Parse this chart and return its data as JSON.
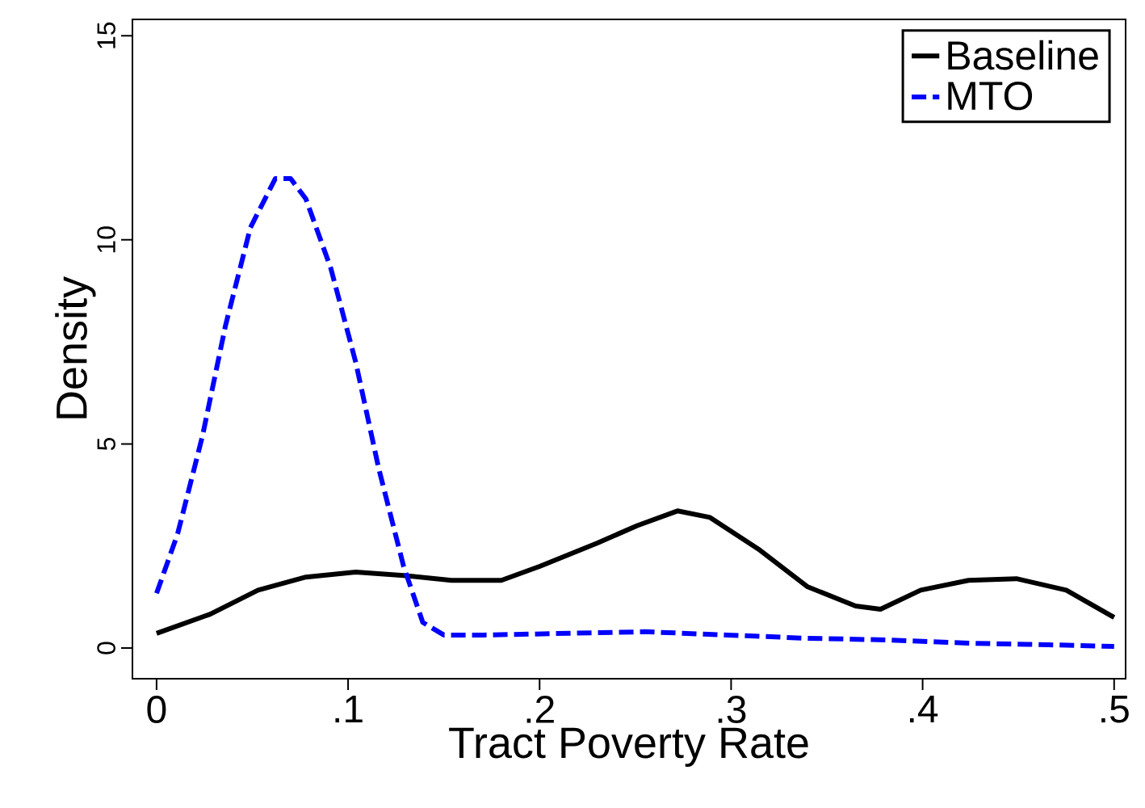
{
  "chart_data": {
    "type": "line",
    "xlabel": "Tract Poverty Rate",
    "ylabel": "Density",
    "xlim": [
      -0.0126,
      0.506
    ],
    "ylim": [
      -0.75,
      15.4
    ],
    "xticks": [
      0,
      {
        "value": 0.1,
        "label": ".1"
      },
      {
        "value": 0.2,
        "label": ".2"
      },
      {
        "value": 0.3,
        "label": ".3"
      },
      {
        "value": 0.4,
        "label": ".4"
      },
      {
        "value": 0.5,
        "label": ".5"
      }
    ],
    "yticks": [
      0,
      5,
      10,
      15
    ],
    "grid": false,
    "legend": "top right",
    "marker": "none",
    "series": [
      {
        "name": "Baseline",
        "color": "#000000",
        "line_style": "solid",
        "x": [
          0,
          0.028,
          0.053,
          0.078,
          0.104,
          0.129,
          0.154,
          0.18,
          0.2,
          0.23,
          0.251,
          0.272,
          0.289,
          0.315,
          0.34,
          0.365,
          0.378,
          0.399,
          0.424,
          0.449,
          0.475,
          0.5
        ],
        "values": [
          0.36,
          0.83,
          1.42,
          1.74,
          1.86,
          1.78,
          1.66,
          1.66,
          2.0,
          2.57,
          3.0,
          3.36,
          3.2,
          2.4,
          1.5,
          1.03,
          0.95,
          1.42,
          1.66,
          1.7,
          1.42,
          0.75
        ]
      },
      {
        "name": "MTO",
        "color": "#0000ff",
        "line_style": "dashed",
        "x": [
          0,
          0.011,
          0.024,
          0.036,
          0.049,
          0.062,
          0.07,
          0.078,
          0.091,
          0.104,
          0.116,
          0.129,
          0.139,
          0.15,
          0.171,
          0.213,
          0.255,
          0.298,
          0.34,
          0.382,
          0.424,
          0.466,
          0.5
        ],
        "values": [
          1.34,
          2.8,
          5.2,
          7.9,
          10.3,
          11.5,
          11.5,
          11.0,
          9.3,
          7.0,
          4.4,
          2.0,
          0.63,
          0.32,
          0.32,
          0.36,
          0.4,
          0.32,
          0.24,
          0.2,
          0.12,
          0.08,
          0.04
        ]
      }
    ]
  }
}
